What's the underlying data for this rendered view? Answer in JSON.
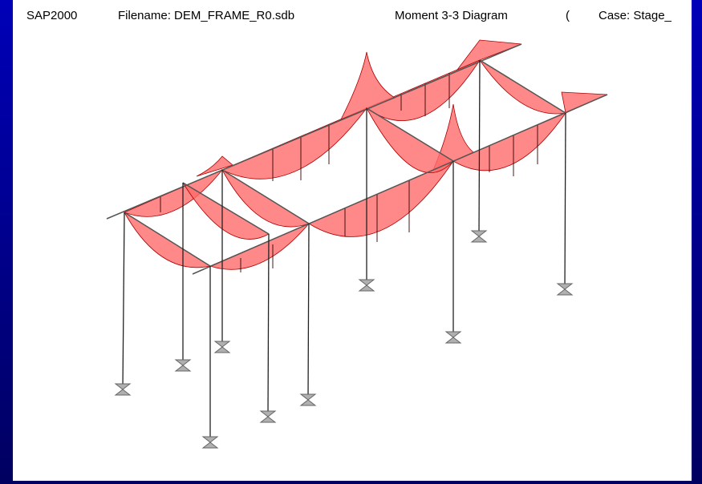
{
  "title_bar": {
    "app": "SAP2000",
    "filename": "Filename: DEM_FRAME_R0.sdb",
    "diagram": "Moment 3-3 Diagram",
    "paren": "(",
    "case": "Case: Stage_"
  }
}
